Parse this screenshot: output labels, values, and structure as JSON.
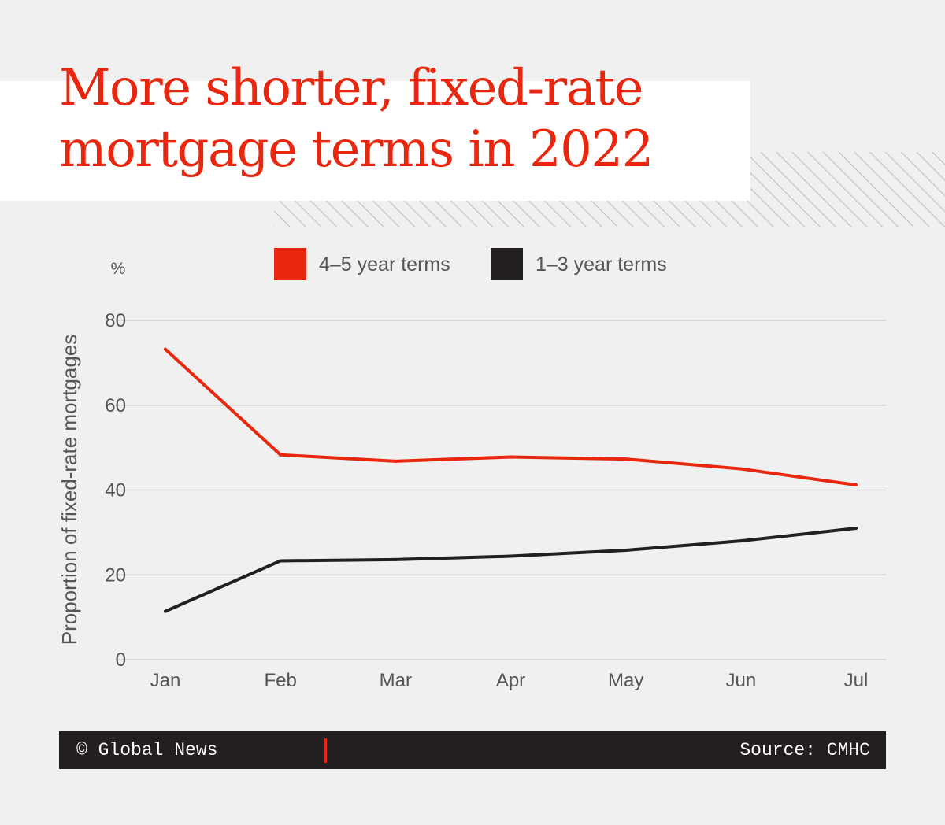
{
  "colors": {
    "accent": "#e8270e",
    "dark": "#231f20",
    "background": "#f0f0f0",
    "grid": "#c8c8c8",
    "text": "#555555"
  },
  "title": "More shorter, fixed-rate\nmortgage terms in 2022",
  "footer": {
    "credit": "© Global News",
    "source": "Source: CMHC"
  },
  "chart_data": {
    "type": "line",
    "unit_label": "%",
    "ylabel": "Proportion of fixed-rate mortgages",
    "xlabel": "",
    "categories": [
      "Jan",
      "Feb",
      "Mar",
      "Apr",
      "May",
      "Jun",
      "Jul"
    ],
    "ylim": [
      0,
      80
    ],
    "yticks": [
      0,
      20,
      40,
      60,
      80
    ],
    "grid": true,
    "legend_position": "top",
    "series": [
      {
        "name": "4–5 year terms",
        "color": "#e8270e",
        "values": [
          73.2,
          48.3,
          46.8,
          47.8,
          47.3,
          45.0,
          41.2
        ]
      },
      {
        "name": "1–3 year terms",
        "color": "#231f20",
        "values": [
          11.4,
          23.3,
          23.6,
          24.4,
          25.8,
          28.0,
          31.0
        ]
      }
    ]
  }
}
